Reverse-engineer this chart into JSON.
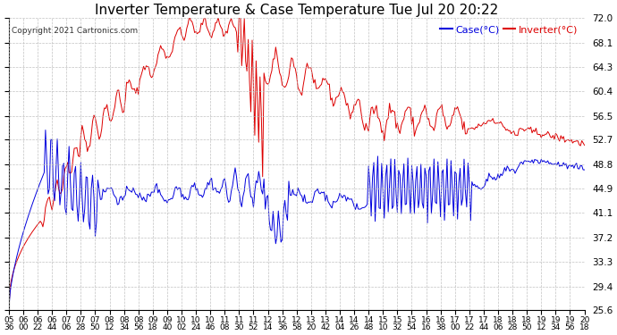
{
  "title": "Inverter Temperature & Case Temperature Tue Jul 20 20:22",
  "copyright": "Copyright 2021 Cartronics.com",
  "legend_case": "Case(°C)",
  "legend_inverter": "Inverter(°C)",
  "yticks": [
    25.6,
    29.4,
    33.3,
    37.2,
    41.1,
    44.9,
    48.8,
    52.7,
    56.5,
    60.4,
    64.3,
    68.1,
    72.0
  ],
  "ymin": 25.6,
  "ymax": 72.0,
  "color_case": "#0000dd",
  "color_inverter": "#dd0000",
  "background_color": "#ffffff",
  "grid_color": "#bbbbbb",
  "title_fontsize": 11,
  "label_fontsize": 7.5,
  "xtick_labels": [
    "05:36",
    "06:00",
    "06:22",
    "06:44",
    "07:06",
    "07:28",
    "07:50",
    "08:12",
    "08:34",
    "08:56",
    "09:18",
    "09:40",
    "10:02",
    "10:24",
    "10:46",
    "11:08",
    "11:30",
    "11:52",
    "12:14",
    "12:36",
    "12:58",
    "13:20",
    "13:42",
    "14:04",
    "14:26",
    "14:48",
    "15:10",
    "15:32",
    "15:54",
    "16:16",
    "16:38",
    "17:00",
    "17:22",
    "17:44",
    "18:06",
    "18:28",
    "18:50",
    "19:12",
    "19:34",
    "19:56",
    "20:18"
  ]
}
